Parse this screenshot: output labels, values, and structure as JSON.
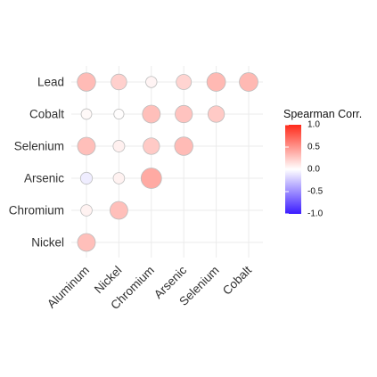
{
  "chart_data": {
    "type": "heatmap",
    "subtype": "correlation-bubble-lower-triangle",
    "x_categories": [
      "Aluminum",
      "Nickel",
      "Chromium",
      "Arsenic",
      "Selenium",
      "Cobalt"
    ],
    "y_categories": [
      "Lead",
      "Cobalt",
      "Selenium",
      "Arsenic",
      "Chromium",
      "Nickel"
    ],
    "cells": [
      {
        "y": "Lead",
        "x": "Aluminum",
        "value": 0.32
      },
      {
        "y": "Lead",
        "x": "Nickel",
        "value": 0.22
      },
      {
        "y": "Lead",
        "x": "Chromium",
        "value": 0.05
      },
      {
        "y": "Lead",
        "x": "Arsenic",
        "value": 0.2
      },
      {
        "y": "Lead",
        "x": "Selenium",
        "value": 0.33
      },
      {
        "y": "Lead",
        "x": "Cobalt",
        "value": 0.33
      },
      {
        "y": "Cobalt",
        "x": "Aluminum",
        "value": 0.03
      },
      {
        "y": "Cobalt",
        "x": "Nickel",
        "value": 0.01
      },
      {
        "y": "Cobalt",
        "x": "Chromium",
        "value": 0.3
      },
      {
        "y": "Cobalt",
        "x": "Arsenic",
        "value": 0.28
      },
      {
        "y": "Cobalt",
        "x": "Selenium",
        "value": 0.25
      },
      {
        "y": "Selenium",
        "x": "Aluminum",
        "value": 0.3
      },
      {
        "y": "Selenium",
        "x": "Nickel",
        "value": 0.07
      },
      {
        "y": "Selenium",
        "x": "Chromium",
        "value": 0.25
      },
      {
        "y": "Selenium",
        "x": "Arsenic",
        "value": 0.32
      },
      {
        "y": "Arsenic",
        "x": "Aluminum",
        "value": -0.08
      },
      {
        "y": "Arsenic",
        "x": "Nickel",
        "value": 0.06
      },
      {
        "y": "Arsenic",
        "x": "Chromium",
        "value": 0.4
      },
      {
        "y": "Chromium",
        "x": "Aluminum",
        "value": 0.06
      },
      {
        "y": "Chromium",
        "x": "Nickel",
        "value": 0.3
      },
      {
        "y": "Nickel",
        "x": "Aluminum",
        "value": 0.3
      }
    ],
    "legend": {
      "title": "Spearman Corr.",
      "ticks": [
        "1.0",
        "0.5",
        "0.0",
        "-0.5",
        "-1.0"
      ],
      "limits": [
        -1,
        1
      ],
      "colors": {
        "low": "#3b1cff",
        "mid": "#ffffff",
        "high": "#ff2a1a"
      },
      "placement": "right"
    },
    "grid": true,
    "size_encodes": "absolute correlation"
  }
}
